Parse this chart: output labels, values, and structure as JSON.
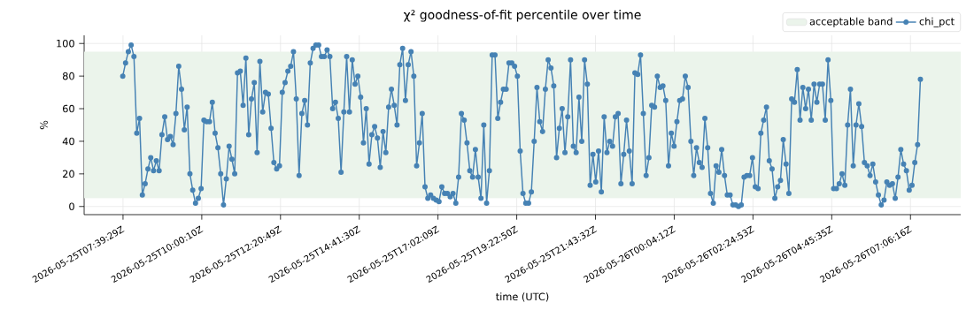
{
  "chart_data": {
    "type": "line",
    "title": "χ² goodness-of-fit percentile over time",
    "xlabel": "time (UTC)",
    "ylabel": "%",
    "x": [
      "2026-05-25T07:39",
      "2026-05-25T07:44",
      "2026-05-25T07:49",
      "2026-05-25T07:54",
      "2026-05-25T07:59",
      "2026-05-25T08:04",
      "2026-05-25T08:09",
      "2026-05-25T08:14",
      "2026-05-25T08:19",
      "2026-05-25T08:24",
      "2026-05-25T08:29",
      "2026-05-25T08:34",
      "2026-05-25T08:39",
      "2026-05-25T08:44",
      "2026-05-25T08:49",
      "2026-05-25T08:54",
      "2026-05-25T08:59",
      "2026-05-25T09:04",
      "2026-05-25T09:09",
      "2026-05-25T09:14",
      "2026-05-25T09:19",
      "2026-05-25T09:24",
      "2026-05-25T09:29",
      "2026-05-25T09:34",
      "2026-05-25T09:39",
      "2026-05-25T09:44",
      "2026-05-25T09:49",
      "2026-05-25T09:54",
      "2026-05-25T09:59",
      "2026-05-25T10:04",
      "2026-05-25T10:09",
      "2026-05-25T10:14",
      "2026-05-25T10:19",
      "2026-05-25T10:24",
      "2026-05-25T10:29",
      "2026-05-25T10:34",
      "2026-05-25T10:39",
      "2026-05-25T10:44",
      "2026-05-25T10:49",
      "2026-05-25T10:54",
      "2026-05-25T10:59",
      "2026-05-25T11:04",
      "2026-05-25T11:09",
      "2026-05-25T11:14",
      "2026-05-25T11:19",
      "2026-05-25T11:24",
      "2026-05-25T11:29",
      "2026-05-25T11:34",
      "2026-05-25T11:39",
      "2026-05-25T11:44",
      "2026-05-25T11:49",
      "2026-05-25T11:54",
      "2026-05-25T11:59",
      "2026-05-25T12:04",
      "2026-05-25T12:09",
      "2026-05-25T12:14",
      "2026-05-25T12:19",
      "2026-05-25T12:24",
      "2026-05-25T12:29",
      "2026-05-25T12:34",
      "2026-05-25T12:39",
      "2026-05-25T12:44",
      "2026-05-25T12:49",
      "2026-05-25T12:54",
      "2026-05-25T12:59",
      "2026-05-25T13:04",
      "2026-05-25T13:09",
      "2026-05-25T13:14",
      "2026-05-25T13:19",
      "2026-05-25T13:24",
      "2026-05-25T13:29",
      "2026-05-25T13:34",
      "2026-05-25T13:39",
      "2026-05-25T13:44",
      "2026-05-25T13:49",
      "2026-05-25T13:54",
      "2026-05-25T13:59",
      "2026-05-25T14:04",
      "2026-05-25T14:09",
      "2026-05-25T14:14",
      "2026-05-25T14:19",
      "2026-05-25T14:24",
      "2026-05-25T14:29",
      "2026-05-25T14:34",
      "2026-05-25T14:39",
      "2026-05-25T14:44",
      "2026-05-25T14:49",
      "2026-05-25T14:54",
      "2026-05-25T14:59",
      "2026-05-25T15:04",
      "2026-05-25T15:09",
      "2026-05-25T15:14",
      "2026-05-25T15:19",
      "2026-05-25T15:24",
      "2026-05-25T15:29",
      "2026-05-25T15:34",
      "2026-05-25T15:39",
      "2026-05-25T15:44",
      "2026-05-25T15:49",
      "2026-05-25T15:54",
      "2026-05-25T15:59",
      "2026-05-25T16:04",
      "2026-05-25T16:09",
      "2026-05-25T16:14",
      "2026-05-25T16:19",
      "2026-05-25T16:24",
      "2026-05-25T16:29",
      "2026-05-25T16:34",
      "2026-05-25T16:39",
      "2026-05-25T16:44",
      "2026-05-25T16:49",
      "2026-05-25T16:54",
      "2026-05-25T16:59",
      "2026-05-25T17:04",
      "2026-05-25T17:09",
      "2026-05-25T17:14",
      "2026-05-25T17:19",
      "2026-05-25T17:24",
      "2026-05-25T17:29",
      "2026-05-25T17:34",
      "2026-05-25T17:39",
      "2026-05-25T17:44",
      "2026-05-25T17:49",
      "2026-05-25T17:54",
      "2026-05-25T17:59",
      "2026-05-25T18:04",
      "2026-05-25T18:09",
      "2026-05-25T18:14",
      "2026-05-25T18:19",
      "2026-05-25T18:24",
      "2026-05-25T18:29",
      "2026-05-25T18:34",
      "2026-05-25T18:39",
      "2026-05-25T18:44",
      "2026-05-25T18:49",
      "2026-05-25T18:54",
      "2026-05-25T18:59",
      "2026-05-25T19:04",
      "2026-05-25T19:09",
      "2026-05-25T19:14",
      "2026-05-25T19:19",
      "2026-05-25T19:24",
      "2026-05-25T19:29",
      "2026-05-25T19:34",
      "2026-05-25T19:39",
      "2026-05-25T19:44",
      "2026-05-25T19:49",
      "2026-05-25T19:54",
      "2026-05-25T19:59",
      "2026-05-25T20:04",
      "2026-05-25T20:09",
      "2026-05-25T20:14",
      "2026-05-25T20:19",
      "2026-05-25T20:24",
      "2026-05-25T20:29",
      "2026-05-25T20:34",
      "2026-05-25T20:39",
      "2026-05-25T20:44",
      "2026-05-25T20:49",
      "2026-05-25T20:54",
      "2026-05-25T20:59",
      "2026-05-25T21:04",
      "2026-05-25T21:09",
      "2026-05-25T21:14",
      "2026-05-25T21:19",
      "2026-05-25T21:24",
      "2026-05-25T21:29",
      "2026-05-25T21:34",
      "2026-05-25T21:39",
      "2026-05-25T21:44",
      "2026-05-25T21:49",
      "2026-05-25T21:54",
      "2026-05-25T21:59",
      "2026-05-25T22:04",
      "2026-05-25T22:09",
      "2026-05-25T22:14",
      "2026-05-25T22:19",
      "2026-05-25T22:24",
      "2026-05-25T22:29",
      "2026-05-25T22:34",
      "2026-05-25T22:39",
      "2026-05-25T22:44",
      "2026-05-25T22:49",
      "2026-05-25T22:54",
      "2026-05-25T22:59",
      "2026-05-25T23:04",
      "2026-05-25T23:09",
      "2026-05-25T23:14",
      "2026-05-25T23:19",
      "2026-05-25T23:24",
      "2026-05-25T23:29",
      "2026-05-25T23:34",
      "2026-05-25T23:39",
      "2026-05-25T23:44",
      "2026-05-25T23:49",
      "2026-05-25T23:54",
      "2026-05-25T23:59",
      "2026-05-26T00:04",
      "2026-05-26T00:09",
      "2026-05-26T00:14",
      "2026-05-26T00:19",
      "2026-05-26T00:24",
      "2026-05-26T00:29",
      "2026-05-26T00:34",
      "2026-05-26T00:39",
      "2026-05-26T00:44",
      "2026-05-26T00:49",
      "2026-05-26T00:54",
      "2026-05-26T00:59",
      "2026-05-26T01:04",
      "2026-05-26T01:09",
      "2026-05-26T01:14",
      "2026-05-26T01:19",
      "2026-05-26T01:24",
      "2026-05-26T01:29",
      "2026-05-26T01:34",
      "2026-05-26T01:39",
      "2026-05-26T01:44",
      "2026-05-26T01:49",
      "2026-05-26T01:54",
      "2026-05-26T01:59",
      "2026-05-26T02:04",
      "2026-05-26T02:09",
      "2026-05-26T02:14",
      "2026-05-26T02:19",
      "2026-05-26T02:24",
      "2026-05-26T02:29",
      "2026-05-26T02:34",
      "2026-05-26T02:39",
      "2026-05-26T02:44",
      "2026-05-26T02:49",
      "2026-05-26T02:54",
      "2026-05-26T02:59",
      "2026-05-26T03:04",
      "2026-05-26T03:09",
      "2026-05-26T03:14",
      "2026-05-26T03:19",
      "2026-05-26T03:24",
      "2026-05-26T03:29",
      "2026-05-26T03:34",
      "2026-05-26T03:39",
      "2026-05-26T03:44",
      "2026-05-26T03:49",
      "2026-05-26T03:54",
      "2026-05-26T03:59",
      "2026-05-26T04:04",
      "2026-05-26T04:09",
      "2026-05-26T04:14",
      "2026-05-26T04:19",
      "2026-05-26T04:24",
      "2026-05-26T04:29",
      "2026-05-26T04:34",
      "2026-05-26T04:39",
      "2026-05-26T04:44",
      "2026-05-26T04:49",
      "2026-05-26T04:54",
      "2026-05-26T04:59",
      "2026-05-26T05:04",
      "2026-05-26T05:09",
      "2026-05-26T05:14",
      "2026-05-26T05:19",
      "2026-05-26T05:24",
      "2026-05-26T05:29",
      "2026-05-26T05:34",
      "2026-05-26T05:39",
      "2026-05-26T05:44",
      "2026-05-26T05:49",
      "2026-05-26T05:54",
      "2026-05-26T05:59",
      "2026-05-26T06:04",
      "2026-05-26T06:09",
      "2026-05-26T06:14",
      "2026-05-26T06:19",
      "2026-05-26T06:24",
      "2026-05-26T06:29",
      "2026-05-26T06:34",
      "2026-05-26T06:39",
      "2026-05-26T06:44",
      "2026-05-26T06:49",
      "2026-05-26T06:54",
      "2026-05-26T06:59",
      "2026-05-26T07:04",
      "2026-05-26T07:09",
      "2026-05-26T07:14",
      "2026-05-26T07:19",
      "2026-05-26T07:24"
    ],
    "series": [
      {
        "name": "chi_pct",
        "color": "#4682b4",
        "values": [
          80,
          88,
          95,
          99,
          92,
          45,
          54,
          7,
          14,
          23,
          30,
          22,
          28,
          22,
          44,
          55,
          41,
          43,
          38,
          57,
          86,
          72,
          47,
          61,
          20,
          10,
          2,
          5,
          11,
          53,
          52,
          52,
          64,
          45,
          36,
          20,
          1,
          17,
          37,
          29,
          20,
          82,
          83,
          62,
          91,
          44,
          66,
          76,
          33,
          89,
          58,
          70,
          69,
          48,
          27,
          23,
          25,
          70,
          76,
          83,
          86,
          95,
          66,
          19,
          57,
          65,
          50,
          88,
          97,
          99,
          99,
          92,
          92,
          96,
          92,
          60,
          64,
          54,
          21,
          58,
          92,
          58,
          90,
          75,
          80,
          67,
          39,
          60,
          26,
          44,
          49,
          42,
          24,
          46,
          33,
          61,
          72,
          62,
          50,
          87,
          97,
          65,
          87,
          95,
          80,
          25,
          39,
          57,
          12,
          5,
          7,
          5,
          4,
          3,
          12,
          8,
          8,
          6,
          8,
          2,
          18,
          57,
          53,
          39,
          22,
          18,
          35,
          18,
          5,
          50,
          2,
          22,
          93,
          93,
          54,
          64,
          72,
          72,
          88,
          88,
          86,
          80,
          34,
          8,
          2,
          2,
          9,
          40,
          73,
          52,
          46,
          72,
          90,
          85,
          74,
          30,
          48,
          60,
          33,
          55,
          90,
          37,
          33,
          67,
          40,
          90,
          75,
          13,
          32,
          15,
          34,
          9,
          55,
          33,
          40,
          37,
          55,
          57,
          14,
          32,
          53,
          34,
          14,
          82,
          81,
          93,
          57,
          19,
          30,
          62,
          61,
          80,
          73,
          74,
          65,
          25,
          45,
          37,
          52,
          65,
          66,
          80,
          73,
          40,
          19,
          36,
          27,
          24,
          54,
          36,
          8,
          2,
          25,
          21,
          35,
          19,
          7,
          7,
          1,
          1,
          0,
          1,
          18,
          19,
          19,
          30,
          12,
          11,
          45,
          53,
          61,
          28,
          23,
          5,
          12,
          16,
          41,
          26,
          8,
          66,
          64,
          84,
          53,
          73,
          60,
          72,
          53,
          75,
          64,
          75,
          75,
          53,
          90,
          65,
          11,
          11,
          14,
          20,
          13,
          50,
          72,
          25,
          50,
          63,
          49,
          27,
          25,
          19,
          26,
          15,
          7,
          1,
          4,
          15,
          13,
          14,
          5,
          18,
          35,
          26,
          22,
          10,
          13,
          27,
          38,
          78
        ]
      }
    ],
    "bands": [
      {
        "axis": "y",
        "from": 5,
        "to": 95,
        "label": "acceptable band",
        "color": "#ebf4eb"
      }
    ],
    "xlim": [
      "2026-05-25T06:30",
      "2026-05-26T08:36"
    ],
    "ylim": [
      -5,
      105
    ],
    "xticks": [
      {
        "value": "2026-05-25T07:39:29",
        "label": "2026-05-25T07:39:29Z"
      },
      {
        "value": "2026-05-25T10:00:10",
        "label": "2026-05-25T10:00:10Z"
      },
      {
        "value": "2026-05-25T12:20:49",
        "label": "2026-05-25T12:20:49Z"
      },
      {
        "value": "2026-05-25T14:41:30",
        "label": "2026-05-25T14:41:30Z"
      },
      {
        "value": "2026-05-25T17:02:09",
        "label": "2026-05-25T17:02:09Z"
      },
      {
        "value": "2026-05-25T19:22:50",
        "label": "2026-05-25T19:22:50Z"
      },
      {
        "value": "2026-05-25T21:43:32",
        "label": "2026-05-25T21:43:32Z"
      },
      {
        "value": "2026-05-26T00:04:12",
        "label": "2026-05-26T00:04:12Z"
      },
      {
        "value": "2026-05-26T02:24:53",
        "label": "2026-05-26T02:24:53Z"
      },
      {
        "value": "2026-05-26T04:45:35",
        "label": "2026-05-26T04:45:35Z"
      },
      {
        "value": "2026-05-26T07:06:16",
        "label": "2026-05-26T07:06:16Z"
      }
    ],
    "yticks": [
      0,
      20,
      40,
      60,
      80,
      100
    ],
    "grid": true,
    "legend": "top right",
    "marker": "circle",
    "line_style": "solid"
  }
}
